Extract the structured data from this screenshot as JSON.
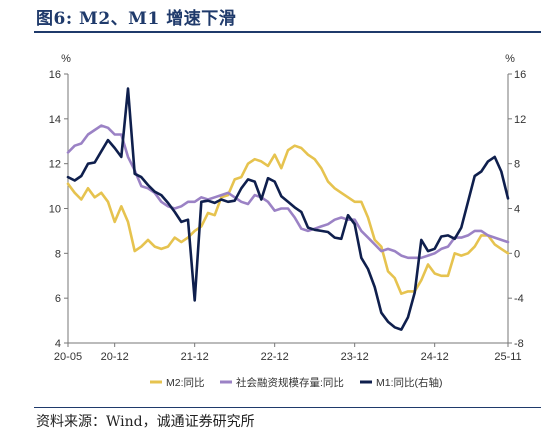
{
  "title": "图6:    M2、M1 增速下滑",
  "source": "资料来源：Wind，诚通证券研究所",
  "chart_data": {
    "type": "line",
    "unit_left": "%",
    "unit_right": "%",
    "x_ticks": [
      "20-05",
      "20-12",
      "21-12",
      "22-12",
      "23-12",
      "24-12",
      "25-11"
    ],
    "x_tick_index": [
      0,
      7,
      19,
      31,
      43,
      55,
      66
    ],
    "n_points": 67,
    "left_axis": {
      "min": 4,
      "max": 16,
      "ticks": [
        4,
        6,
        8,
        10,
        12,
        14,
        16
      ]
    },
    "right_axis": {
      "min": -8,
      "max": 16,
      "ticks": [
        -8,
        -4,
        0,
        4,
        8,
        12,
        16
      ]
    },
    "legend_position": "bottom",
    "colors": {
      "m2": "#e6c34f",
      "tsf": "#9b82c5",
      "m1": "#0f1f4d"
    },
    "series": [
      {
        "name": "M2:同比",
        "axis": "left",
        "values": [
          11.1,
          10.7,
          10.4,
          10.9,
          10.5,
          10.7,
          10.3,
          9.4,
          10.1,
          9.4,
          8.1,
          8.3,
          8.6,
          8.3,
          8.2,
          8.3,
          8.7,
          8.5,
          8.7,
          9.0,
          9.2,
          9.8,
          9.7,
          10.5,
          10.6,
          11.3,
          11.4,
          12.0,
          12.2,
          12.1,
          11.9,
          12.4,
          11.8,
          12.6,
          12.8,
          12.7,
          12.4,
          12.2,
          11.8,
          11.2,
          10.9,
          10.7,
          10.5,
          10.3,
          10.3,
          9.6,
          8.6,
          8.3,
          7.2,
          6.9,
          6.2,
          6.3,
          6.3,
          6.8,
          7.5,
          7.1,
          7.0,
          7.0,
          8.0,
          7.9,
          8.0,
          8.3,
          8.8,
          8.8,
          8.4,
          8.2,
          8.0
        ]
      },
      {
        "name": "社会融资规模存量:同比",
        "axis": "left",
        "values": [
          12.5,
          12.8,
          12.9,
          13.3,
          13.5,
          13.7,
          13.6,
          13.3,
          13.3,
          12.3,
          11.7,
          11.0,
          10.9,
          10.7,
          10.3,
          10.1,
          10.0,
          10.1,
          10.3,
          10.3,
          10.5,
          10.4,
          10.5,
          10.6,
          10.7,
          10.5,
          10.3,
          10.2,
          10.6,
          10.5,
          10.3,
          9.9,
          10.0,
          10.0,
          9.6,
          9.1,
          9.0,
          9.1,
          9.2,
          9.3,
          9.5,
          9.6,
          9.5,
          9.5,
          9.0,
          8.7,
          8.4,
          8.1,
          8.2,
          8.1,
          7.9,
          7.8,
          7.8,
          7.8,
          7.9,
          8.0,
          8.2,
          8.3,
          8.7,
          8.7,
          8.8,
          9.0,
          9.0,
          8.8,
          8.7,
          8.6,
          8.5
        ]
      },
      {
        "name": "M1:同比(右轴)",
        "axis": "right",
        "values": [
          6.8,
          6.5,
          6.9,
          8.0,
          8.1,
          9.1,
          10.1,
          9.4,
          8.6,
          14.7,
          7.1,
          6.8,
          6.1,
          5.5,
          5.2,
          4.5,
          3.7,
          2.8,
          3.0,
          -4.2,
          4.6,
          4.7,
          4.5,
          4.8,
          4.6,
          4.7,
          5.8,
          6.6,
          6.4,
          4.8,
          6.7,
          6.4,
          5.1,
          4.6,
          4.1,
          3.7,
          2.3,
          2.1,
          2.0,
          1.9,
          1.4,
          1.3,
          3.4,
          2.6,
          -0.4,
          -1.4,
          -3.0,
          -5.3,
          -6.1,
          -6.6,
          -6.8,
          -5.7,
          -3.5,
          1.2,
          0.2,
          0.4,
          1.5,
          1.6,
          1.3,
          2.3,
          4.6,
          6.9,
          7.3,
          8.2,
          8.6,
          7.3,
          4.9
        ]
      }
    ]
  }
}
